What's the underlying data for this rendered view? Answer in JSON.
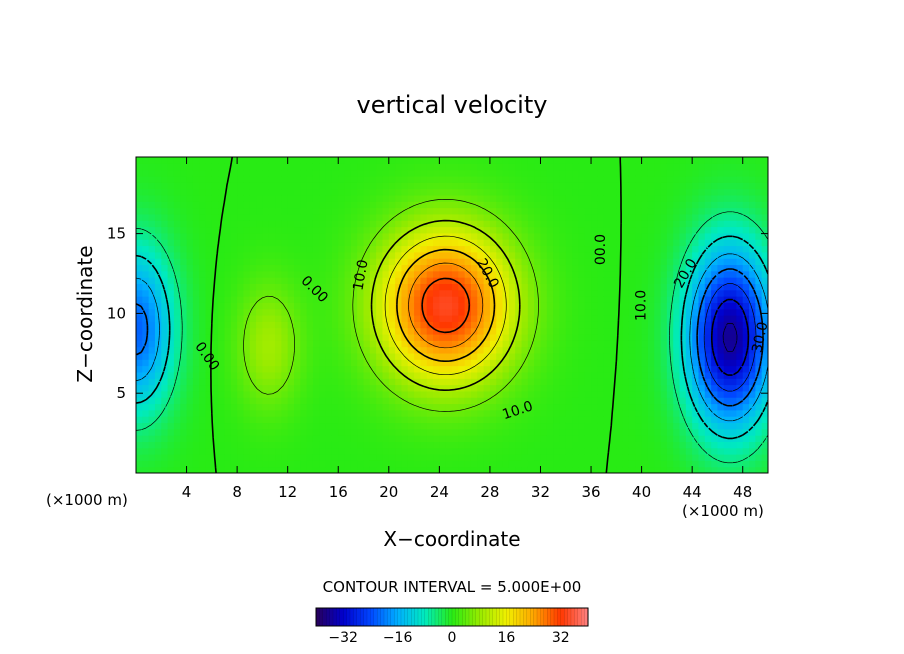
{
  "chart_data": {
    "type": "heatmap",
    "title": "vertical velocity",
    "xlabel": "X−coordinate",
    "ylabel": "Z−coordinate",
    "x_unit_left": "(×1000 m)",
    "x_unit_right": "(×1000 m)",
    "xlim": [
      0,
      50
    ],
    "ylim": [
      0,
      19.8
    ],
    "x_ticks": [
      "4",
      "8",
      "12",
      "16",
      "20",
      "24",
      "28",
      "32",
      "36",
      "40",
      "44",
      "48"
    ],
    "y_ticks": [
      "5",
      "10",
      "15"
    ],
    "x_tick_values": [
      4,
      8,
      12,
      16,
      20,
      24,
      28,
      32,
      36,
      40,
      44,
      48
    ],
    "y_tick_values": [
      5,
      10,
      15
    ],
    "contour_interval_text": "CONTOUR INTERVAL = 5.000E+00",
    "contour_interval": 5.0,
    "contour_labels": [
      {
        "text": "0.00",
        "x": 5.6,
        "y": 7.3,
        "rot": 55
      },
      {
        "text": "0.00",
        "x": 14.1,
        "y": 11.5,
        "rot": 45
      },
      {
        "text": "10.0",
        "x": 17.8,
        "y": 12.4,
        "rot": -80
      },
      {
        "text": "20.0",
        "x": 27.8,
        "y": 12.5,
        "rot": 62
      },
      {
        "text": "10.0",
        "x": 30.2,
        "y": 3.9,
        "rot": -18
      },
      {
        "text": "00.0",
        "x": 36.8,
        "y": 14.0,
        "rot": -90
      },
      {
        "text": "10.0",
        "x": 40.0,
        "y": 10.5,
        "rot": -90
      },
      {
        "text": "20.0",
        "x": 43.5,
        "y": 12.5,
        "rot": -60
      },
      {
        "text": "30.0",
        "x": 49.4,
        "y": 8.5,
        "rot": -78
      }
    ],
    "colorbar": {
      "range": [
        -40,
        40
      ],
      "ticks": [
        -32,
        -16,
        0,
        16,
        32
      ],
      "tick_labels": [
        "−32",
        "−16",
        "0",
        "16",
        "32"
      ]
    },
    "fields": [
      {
        "sign": 1,
        "amp": 34,
        "cx": 24.5,
        "cz": 10.5,
        "sx": 5.3,
        "sz": 4.8
      },
      {
        "sign": -1,
        "amp": 36,
        "cx": 47.0,
        "cz": 8.5,
        "sx": 3.4,
        "sz": 5.6
      },
      {
        "sign": -1,
        "amp": 22,
        "cx": 0.0,
        "cz": 9.0,
        "sx": 3.0,
        "sz": 5.2
      },
      {
        "sign": 1,
        "amp": 9,
        "cx": 10.5,
        "cz": 8.0,
        "sx": 2.6,
        "sz": 4.0
      }
    ]
  }
}
